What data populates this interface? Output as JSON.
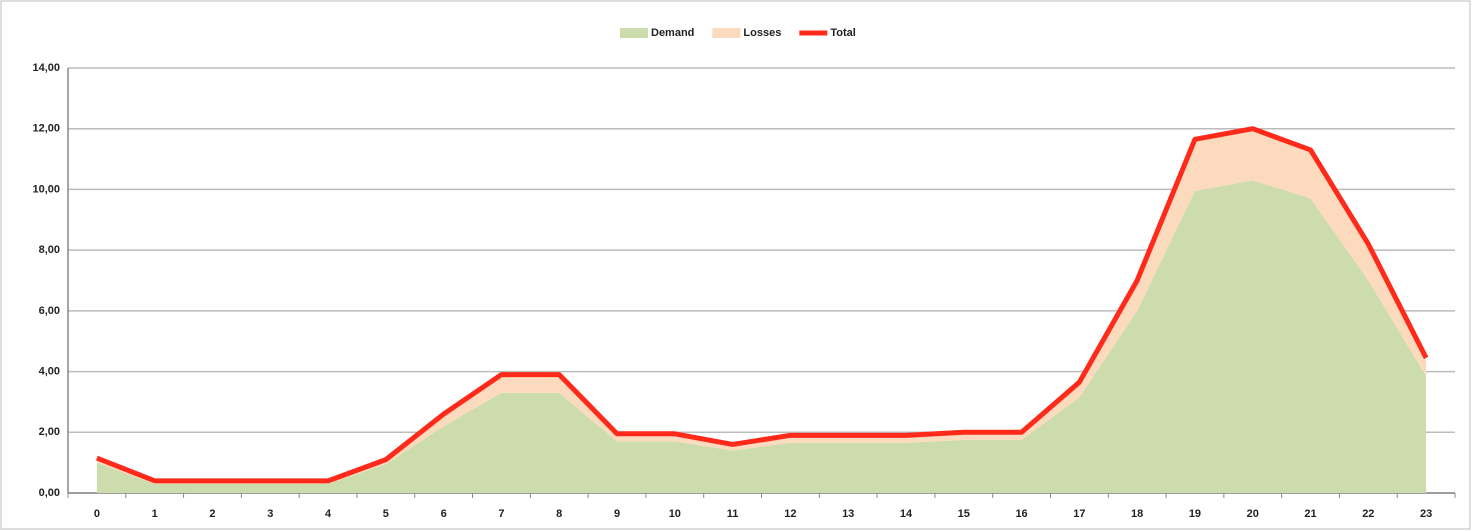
{
  "chart_data": {
    "type": "stacked_area_line",
    "categories": [
      "0",
      "1",
      "2",
      "3",
      "4",
      "5",
      "6",
      "7",
      "8",
      "9",
      "10",
      "11",
      "12",
      "13",
      "14",
      "15",
      "16",
      "17",
      "18",
      "19",
      "20",
      "21",
      "22",
      "23"
    ],
    "series": [
      {
        "name": "Demand",
        "color": "#cddcac",
        "kind": "area",
        "values": [
          1.0,
          0.3,
          0.3,
          0.3,
          0.3,
          0.95,
          2.2,
          3.3,
          3.3,
          1.7,
          1.7,
          1.4,
          1.65,
          1.65,
          1.65,
          1.75,
          1.75,
          3.15,
          6.0,
          9.95,
          10.3,
          9.7,
          7.0,
          3.85
        ]
      },
      {
        "name": "Losses",
        "color": "#fcdabd",
        "kind": "area",
        "values": [
          0.15,
          0.1,
          0.1,
          0.1,
          0.1,
          0.15,
          0.4,
          0.6,
          0.6,
          0.25,
          0.25,
          0.2,
          0.25,
          0.25,
          0.25,
          0.25,
          0.25,
          0.5,
          1.0,
          1.7,
          1.7,
          1.6,
          1.2,
          0.6
        ]
      },
      {
        "name": "Total",
        "color": "#ff2a1a",
        "kind": "line",
        "values": [
          1.15,
          0.4,
          0.4,
          0.4,
          0.4,
          1.1,
          2.6,
          3.9,
          3.9,
          1.95,
          1.95,
          1.6,
          1.9,
          1.9,
          1.9,
          2.0,
          2.0,
          3.65,
          7.0,
          11.65,
          12.0,
          11.3,
          8.2,
          4.45
        ]
      }
    ],
    "ylim": [
      0,
      14
    ],
    "yticks": [
      {
        "value": 0,
        "label": "0,00"
      },
      {
        "value": 2,
        "label": "2,00"
      },
      {
        "value": 4,
        "label": "4,00"
      },
      {
        "value": 6,
        "label": "6,00"
      },
      {
        "value": 8,
        "label": "8,00"
      },
      {
        "value": 10,
        "label": "10,00"
      },
      {
        "value": 12,
        "label": "12,00"
      },
      {
        "value": 14,
        "label": "14,00"
      }
    ],
    "grid": true,
    "legend": "top"
  }
}
